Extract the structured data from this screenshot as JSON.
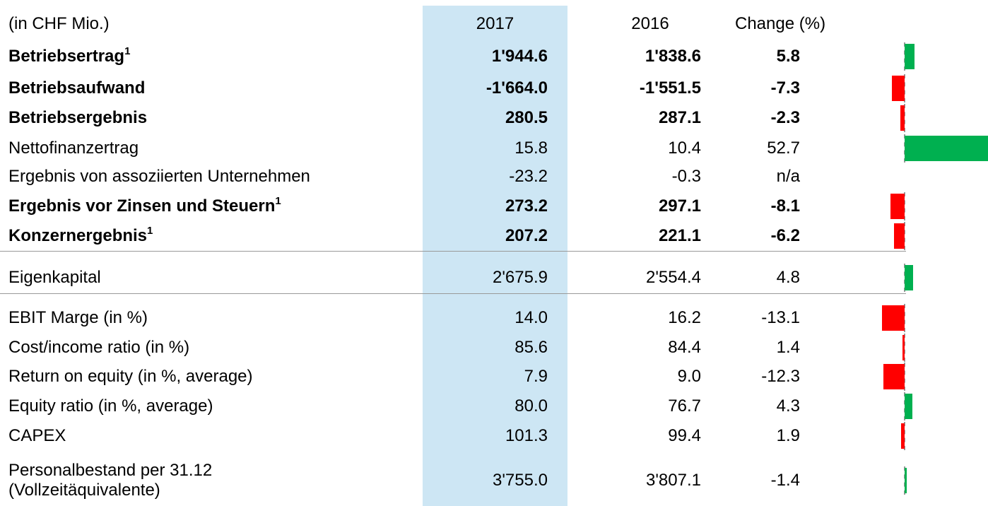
{
  "header": {
    "label": "(in CHF Mio.)",
    "col2017": "2017",
    "col2016": "2016",
    "change": "Change (%)"
  },
  "table": {
    "rows": [
      {
        "label": "Betriebsertrag",
        "note": "1",
        "v2017": "1'944.6",
        "v2016": "1'838.6",
        "change": "5.8",
        "bold": true,
        "bar_color": "#00b050"
      },
      {
        "label": "Betriebsaufwand",
        "v2017": "-1'664.0",
        "v2016": "-1'551.5",
        "change": "-7.3",
        "bold": true,
        "bar_color": "#ff0000"
      },
      {
        "label": "Betriebsergebnis",
        "v2017": "280.5",
        "v2016": "287.1",
        "change": "-2.3",
        "bold": true,
        "bar_color": "#ff0000"
      },
      {
        "label": "Nettofinanzertrag",
        "v2017": "15.8",
        "v2016": "10.4",
        "change": "52.7",
        "bold": false,
        "bar_color": "#00b050"
      },
      {
        "label": "Ergebnis von assoziierten Unternehmen",
        "v2017": "-23.2",
        "v2016": "-0.3",
        "change": "n/a",
        "bold": false
      },
      {
        "label": "Ergebnis vor Zinsen und Steuern",
        "note": "1",
        "v2017": "273.2",
        "v2016": "297.1",
        "change": "-8.1",
        "bold": true,
        "bar_color": "#ff0000"
      },
      {
        "label": "Konzernergebnis",
        "note": "1",
        "v2017": "207.2",
        "v2016": "221.1",
        "change": "-6.2",
        "bold": true,
        "bar_color": "#ff0000"
      },
      {
        "label": "Eigenkapital",
        "v2017": "2'675.9",
        "v2016": "2'554.4",
        "change": "4.8",
        "bold": false,
        "bar_color": "#00b050"
      },
      {
        "label": "EBIT Marge (in %)",
        "v2017": "14.0",
        "v2016": "16.2",
        "change": "-13.1",
        "bold": false,
        "bar_color": "#ff0000"
      },
      {
        "label": "Cost/income ratio (in %)",
        "v2017": "85.6",
        "v2016": "84.4",
        "change": "1.4",
        "bold": false,
        "bar_color": "#ff0000"
      },
      {
        "label": "Return on equity (in %, average)",
        "v2017": "7.9",
        "v2016": "9.0",
        "change": "-12.3",
        "bold": false,
        "bar_color": "#ff0000"
      },
      {
        "label": "Equity ratio (in %, average)",
        "v2017": "80.0",
        "v2016": "76.7",
        "change": "4.3",
        "bold": false,
        "bar_color": "#00b050"
      },
      {
        "label": "CAPEX",
        "v2017": "101.3",
        "v2016": "99.4",
        "change": "1.9",
        "bold": false,
        "bar_color": "#ff0000"
      },
      {
        "label": "Personalbestand per 31.12\n(Vollzeitäquivalente)",
        "v2017": "3'755.0",
        "v2016": "3'807.1",
        "change": "-1.4",
        "bold": false,
        "bar_color": "#00b050"
      }
    ]
  }
}
